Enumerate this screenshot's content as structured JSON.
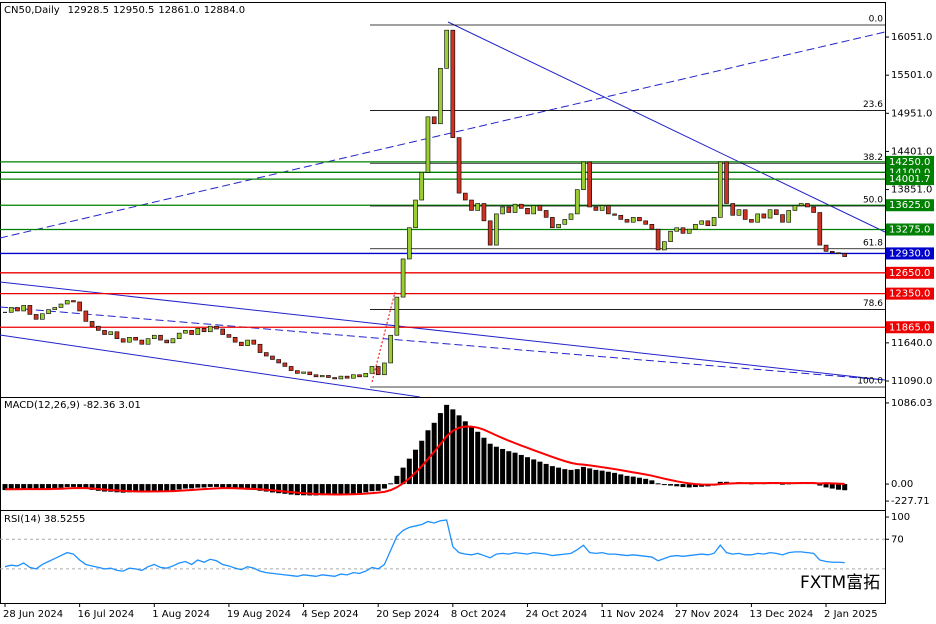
{
  "header": {
    "symbol": "CN50,Daily",
    "ohlc": [
      "12928.5",
      "12950.5",
      "12861.0",
      "12884.0"
    ]
  },
  "watermark": "FXTM富拓",
  "chart_data": [
    {
      "type": "candlestick",
      "ylim": [
        10859,
        16513
      ],
      "yticks": [
        {
          "value": 16051,
          "label": "16051.0"
        },
        {
          "value": 15501,
          "label": "15501.0"
        },
        {
          "value": 14951,
          "label": "14951.0"
        },
        {
          "value": 14401,
          "label": "14401.0"
        },
        {
          "value": 13851,
          "label": "13851.0"
        },
        {
          "value": 11640,
          "label": "11640.0"
        },
        {
          "value": 11090,
          "label": "11090.0"
        }
      ],
      "up_color": "#9acd32",
      "down_color": "#cc3322",
      "values": [
        12080,
        12150,
        12100,
        12180,
        12050,
        11980,
        12060,
        12120,
        12150,
        12200,
        12250,
        12230,
        12100,
        11950,
        11880,
        11820,
        11760,
        11800,
        11700,
        11650,
        11720,
        11680,
        11620,
        11700,
        11750,
        11680,
        11640,
        11700,
        11780,
        11820,
        11760,
        11850,
        11800,
        11880,
        11840,
        11760,
        11720,
        11650,
        11600,
        11680,
        11620,
        11500,
        11450,
        11400,
        11350,
        11300,
        11240,
        11200,
        11220,
        11180,
        11150,
        11170,
        11140,
        11120,
        11160,
        11130,
        11180,
        11150,
        11200,
        11300,
        11180,
        11350,
        11750,
        12300,
        12850,
        13300,
        13700,
        14100,
        14900,
        14800,
        15600,
        16150,
        14600,
        13800,
        13700,
        13550,
        13650,
        13400,
        13050,
        13500,
        13600,
        13520,
        13640,
        13580,
        13500,
        13620,
        13550,
        13450,
        13300,
        13350,
        13420,
        13500,
        13850,
        14250,
        13600,
        13550,
        13620,
        13500,
        13480,
        13420,
        13380,
        13450,
        13400,
        13350,
        13280,
        12980,
        13100,
        13250,
        13300,
        13220,
        13280,
        13350,
        13400,
        13330,
        13450,
        14250,
        13650,
        13480,
        13560,
        13420,
        13380,
        13500,
        13440,
        13560,
        13490,
        13380,
        13550,
        13620,
        13650,
        13600,
        13520,
        13050,
        12960,
        12940,
        12928.5,
        12884
      ],
      "levels": [
        {
          "value": 14250,
          "label": "14250.0",
          "color": "#008000"
        },
        {
          "value": 14100,
          "label": "14100.0",
          "color": "#008000"
        },
        {
          "value": 14001.7,
          "label": "14001.7",
          "color": "#008000"
        },
        {
          "value": 13625,
          "label": "13625.0",
          "color": "#008000"
        },
        {
          "value": 13275,
          "label": "13275.0",
          "color": "#008000"
        },
        {
          "value": 12930,
          "label": "12930.0",
          "color": "#0000cc"
        },
        {
          "value": 12650,
          "label": "12650.0",
          "color": "#ee0000"
        },
        {
          "value": 12350,
          "label": "12350.0",
          "color": "#ee0000"
        },
        {
          "value": 11865,
          "label": "11865.0",
          "color": "#ee0000"
        }
      ],
      "fib": [
        {
          "value": 16224,
          "label": "0.0"
        },
        {
          "value": 14992,
          "label": "23.6"
        },
        {
          "value": 14230,
          "label": "38.2"
        },
        {
          "value": 13614,
          "label": "50.0"
        },
        {
          "value": 12997,
          "label": "61.8"
        },
        {
          "value": 12120,
          "label": "78.6"
        },
        {
          "value": 11003,
          "label": "100.0"
        }
      ]
    },
    {
      "type": "macd",
      "title": "MACD(12,26,9) -82.36 3.01",
      "ylim": [
        -347,
        1152
      ],
      "yticks": [
        {
          "value": 1086.03,
          "label": "1086.03"
        },
        {
          "value": 0,
          "label": "0.00"
        },
        {
          "value": -227.71,
          "label": "-227.71"
        }
      ],
      "series": [
        {
          "name": "MACD",
          "color": "#000000",
          "values": [
            -80,
            -70,
            -65,
            -60,
            -65,
            -72,
            -70,
            -64,
            -58,
            -50,
            -40,
            -38,
            -50,
            -65,
            -78,
            -90,
            -100,
            -102,
            -110,
            -115,
            -110,
            -108,
            -110,
            -100,
            -90,
            -92,
            -94,
            -85,
            -72,
            -60,
            -58,
            -48,
            -46,
            -38,
            -38,
            -45,
            -52,
            -62,
            -72,
            -75,
            -78,
            -90,
            -100,
            -112,
            -122,
            -130,
            -140,
            -148,
            -150,
            -152,
            -152,
            -148,
            -146,
            -144,
            -138,
            -134,
            -126,
            -120,
            -110,
            -95,
            -90,
            -60,
            10,
            110,
            220,
            340,
            460,
            580,
            720,
            820,
            950,
            1060,
            1000,
            920,
            840,
            760,
            700,
            620,
            540,
            500,
            470,
            440,
            420,
            390,
            360,
            330,
            300,
            270,
            240,
            220,
            200,
            190,
            200,
            230,
            210,
            190,
            180,
            165,
            150,
            130,
            110,
            100,
            85,
            70,
            50,
            10,
            -10,
            -20,
            -30,
            -40,
            -45,
            -40,
            -35,
            -30,
            -20,
            30,
            30,
            20,
            25,
            15,
            10,
            15,
            12,
            20,
            15,
            5,
            10,
            15,
            20,
            22,
            15,
            -20,
            -45,
            -60,
            -75,
            -82.36
          ]
        },
        {
          "name": "Signal",
          "color": "#ff0000",
          "values": [
            -70,
            -70,
            -69,
            -68,
            -67,
            -68,
            -68,
            -67,
            -65,
            -62,
            -58,
            -54,
            -53,
            -55,
            -60,
            -66,
            -73,
            -79,
            -85,
            -91,
            -95,
            -98,
            -100,
            -100,
            -98,
            -97,
            -96,
            -94,
            -90,
            -84,
            -79,
            -73,
            -68,
            -62,
            -57,
            -55,
            -54,
            -56,
            -59,
            -62,
            -65,
            -70,
            -76,
            -83,
            -91,
            -99,
            -107,
            -115,
            -122,
            -128,
            -133,
            -136,
            -138,
            -139,
            -139,
            -138,
            -136,
            -133,
            -128,
            -121,
            -115,
            -104,
            -81,
            -43,
            10,
            76,
            153,
            238,
            335,
            432,
            535,
            640,
            712,
            754,
            771,
            769,
            755,
            728,
            690,
            652,
            616,
            580,
            548,
            516,
            485,
            454,
            423,
            393,
            363,
            334,
            307,
            284,
            267,
            260,
            250,
            238,
            226,
            214,
            201,
            187,
            172,
            157,
            143,
            128,
            112,
            92,
            72,
            54,
            37,
            22,
            9,
            0,
            -5,
            -8,
            -8,
            0,
            6,
            9,
            12,
            13,
            12,
            12,
            12,
            14,
            14,
            12,
            12,
            12,
            14,
            15,
            15,
            8,
            12,
            10,
            6,
            3.01
          ]
        }
      ]
    },
    {
      "type": "rsi",
      "title": "RSI(14) 38.5255",
      "ylim": [
        -16,
        106.8
      ],
      "yticks": [
        100,
        70
      ],
      "levels": [
        70,
        30
      ],
      "color": "#1e90ff",
      "values": [
        33,
        35,
        34,
        38,
        32,
        30,
        36,
        40,
        44,
        48,
        52,
        50,
        42,
        36,
        34,
        32,
        30,
        31,
        28,
        27,
        31,
        30,
        28,
        33,
        36,
        32,
        31,
        34,
        38,
        40,
        36,
        42,
        39,
        43,
        41,
        36,
        34,
        31,
        29,
        33,
        31,
        27,
        25,
        24,
        23,
        22,
        21,
        20,
        22,
        21,
        20,
        22,
        21,
        20,
        23,
        22,
        25,
        24,
        27,
        32,
        30,
        36,
        55,
        74,
        82,
        86,
        88,
        90,
        94,
        92,
        95,
        96,
        60,
        52,
        50,
        49,
        51,
        48,
        45,
        50,
        51,
        50,
        52,
        51,
        50,
        52,
        51,
        50,
        48,
        49,
        50,
        51,
        56,
        62,
        52,
        51,
        52,
        50,
        50,
        49,
        48,
        49,
        48,
        47,
        46,
        41,
        44,
        47,
        48,
        47,
        48,
        49,
        50,
        49,
        51,
        62,
        52,
        50,
        51,
        49,
        49,
        51,
        50,
        52,
        51,
        49,
        52,
        53,
        53,
        52,
        51,
        42,
        40,
        39,
        39,
        38.5255
      ],
      "xticks": [
        {
          "value": 0,
          "label": "28 Jun 2024"
        },
        {
          "value": 12,
          "label": "16 Jul 2024"
        },
        {
          "value": 24,
          "label": "1 Aug 2024"
        },
        {
          "value": 36,
          "label": "19 Aug 2024"
        },
        {
          "value": 48,
          "label": "4 Sep 2024"
        },
        {
          "value": 60,
          "label": "20 Sep 2024"
        },
        {
          "value": 72,
          "label": "8 Oct 2024"
        },
        {
          "value": 84,
          "label": "24 Oct 2024"
        },
        {
          "value": 96,
          "label": "11 Nov 2024"
        },
        {
          "value": 108,
          "label": "27 Nov 2024"
        },
        {
          "value": 120,
          "label": "13 Dec 2024"
        },
        {
          "value": 132,
          "label": "2 Jan 2025"
        }
      ]
    }
  ]
}
